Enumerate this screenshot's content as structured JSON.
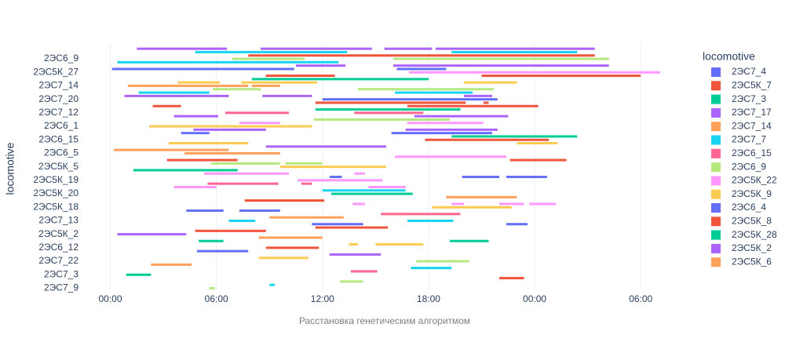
{
  "chart_data": {
    "type": "timeline",
    "y_title": "locomotive",
    "x_title": "Расстановка генетическим алгоритмом",
    "legend_title": "locomotive",
    "xlim": [
      -1,
      31.5
    ],
    "xticks": [
      {
        "value": 0,
        "label": "00:00"
      },
      {
        "value": 6,
        "label": "06:00"
      },
      {
        "value": 12,
        "label": "12:00"
      },
      {
        "value": 18,
        "label": "18:00"
      },
      {
        "value": 24,
        "label": "00:00"
      },
      {
        "value": 30,
        "label": "06:00"
      }
    ],
    "grid": true,
    "categories": [
      null,
      null,
      null,
      "2ЭС6_9",
      null,
      null,
      null,
      "2ЭС5К_27",
      null,
      null,
      null,
      "2ЭС7_14",
      null,
      null,
      null,
      "2ЭС7_20",
      null,
      null,
      null,
      "2ЭС7_12",
      null,
      null,
      null,
      "2ЭС6_1",
      null,
      null,
      null,
      "2ЭС6_15",
      null,
      null,
      null,
      "2ЭС6_5",
      null,
      null,
      null,
      "2ЭС5К_5",
      null,
      null,
      null,
      "2ЭС5К_19",
      null,
      null,
      null,
      "2ЭС5К_20",
      null,
      null,
      null,
      "2ЭС5К_18",
      null,
      null,
      null,
      "2ЭС7_13",
      null,
      null,
      null,
      "2ЭС5К_2",
      null,
      null,
      null,
      "2ЭС6_12",
      null,
      null,
      null,
      "2ЭС7_22",
      null,
      null,
      null,
      "2ЭС7_3",
      null,
      null,
      null,
      "2ЭС7_9"
    ],
    "bars": [
      {
        "color": "#ab63fa",
        "start": [
          1.5,
          8.5,
          15.5,
          18.4
        ],
        "end": [
          6.6,
          14.8,
          18.2,
          27.4
        ]
      },
      {
        "color": "#19d3f3",
        "start": [
          4.8,
          19.3
        ],
        "end": [
          13.4,
          26.4
        ]
      },
      {
        "color": "#EF553B",
        "start": [
          7.8
        ],
        "end": [
          27.4
        ]
      },
      {
        "color": "#B6E880",
        "start": [
          6.9,
          16
        ],
        "end": [
          11,
          28.2
        ]
      },
      {
        "color": "#19d3f3",
        "start": [
          0.4
        ],
        "end": [
          12.9
        ]
      },
      {
        "color": "#ab63fa",
        "start": [
          10.5,
          16
        ],
        "end": [
          13.3,
          28.2
        ]
      },
      {
        "color": "#636efa",
        "start": [
          0.1,
          16.2
        ],
        "end": [
          10.4,
          19
        ]
      },
      {
        "color": "#FF97FF",
        "start": [
          16.9
        ],
        "end": [
          31.1
        ]
      },
      {
        "color": "#EF553B",
        "start": [
          8.8,
          21
        ],
        "end": [
          12.7,
          30
        ]
      },
      {
        "color": "#00cc96",
        "start": [
          8
        ],
        "end": [
          18
        ]
      },
      {
        "color": "#FECB52",
        "start": [
          3.8,
          7.4,
          20
        ],
        "end": [
          6.2,
          11.7,
          23
        ]
      },
      {
        "color": "#FFA15A",
        "start": [
          1,
          8
        ],
        "end": [
          7.8,
          9.6
        ]
      },
      {
        "color": "#B6E880",
        "start": [
          5.8,
          14
        ],
        "end": [
          8.5,
          21.7
        ]
      },
      {
        "color": "#19d3f3",
        "start": [
          1.6,
          16.1
        ],
        "end": [
          5.6,
          20.5
        ]
      },
      {
        "color": "#ab63fa",
        "start": [
          0.8,
          8.6,
          20
        ],
        "end": [
          6.7,
          11.4,
          21.6
        ]
      },
      {
        "color": "#636efa",
        "start": [
          12
        ],
        "end": [
          21.9
        ]
      },
      {
        "color": "#EF553B",
        "start": [
          11.6,
          21.1
        ],
        "end": [
          20.1,
          21.4
        ]
      },
      {
        "color": "#EF553B",
        "start": [
          2.4,
          16.8
        ],
        "end": [
          4,
          24.2
        ]
      },
      {
        "color": "#00cc96",
        "start": [
          11.6
        ],
        "end": [
          19.8
        ]
      },
      {
        "color": "#FF6692",
        "start": [
          6.5,
          13.8
        ],
        "end": [
          10.1,
          17.7
        ]
      },
      {
        "color": "#ab63fa",
        "start": [
          3.6,
          17.2
        ],
        "end": [
          6.1,
          22.5
        ]
      },
      {
        "color": "#B6E880",
        "start": [
          11.5
        ],
        "end": [
          19.2
        ]
      },
      {
        "color": "#FF97FF",
        "start": [
          7.3,
          16.8
        ],
        "end": [
          9.6,
          21.1
        ]
      },
      {
        "color": "#FECB52",
        "start": [
          2.2
        ],
        "end": [
          11.4
        ]
      },
      {
        "color": "#ab63fa",
        "start": [
          4.7,
          16.7
        ],
        "end": [
          8.8,
          21.9
        ]
      },
      {
        "color": "#636efa",
        "start": [
          4,
          15.9
        ],
        "end": [
          5.6,
          21.6
        ]
      },
      {
        "color": "#00cc96",
        "start": [
          19.3
        ],
        "end": [
          26.4
        ]
      },
      {
        "color": "#EF553B",
        "start": [
          17.8
        ],
        "end": [
          24.8
        ]
      },
      {
        "color": "#FECB52",
        "start": [
          3.3,
          23
        ],
        "end": [
          7.8,
          25.3
        ]
      },
      {
        "color": "#ab63fa",
        "start": [
          8.8
        ],
        "end": [
          15.6
        ]
      },
      {
        "color": "#FFA15A",
        "start": [
          0.2
        ],
        "end": [
          6.7
        ]
      },
      {
        "color": "#FFA15A",
        "start": [
          4.2
        ],
        "end": [
          9.6
        ]
      },
      {
        "color": "#FF97FF",
        "start": [
          16.1
        ],
        "end": [
          22.4
        ]
      },
      {
        "color": "#EF553B",
        "start": [
          3.2,
          22.6
        ],
        "end": [
          7.2,
          25.8
        ]
      },
      {
        "color": "#B6E880",
        "start": [
          5.7,
          9.9
        ],
        "end": [
          9.6,
          12
        ]
      },
      {
        "color": "#FECB52",
        "start": [
          9.6
        ],
        "end": [
          15.6
        ]
      },
      {
        "color": "#00cc96",
        "start": [
          1.3
        ],
        "end": [
          7.2
        ]
      },
      {
        "color": "#FF97FF",
        "start": [
          5.3,
          13.8
        ],
        "end": [
          10.1,
          14.4
        ]
      },
      {
        "color": "#636efa",
        "start": [
          12.4,
          19.9,
          22.4
        ],
        "end": [
          13.1,
          22,
          24.7
        ]
      },
      {
        "color": "#FF97FF",
        "start": [
          10.6
        ],
        "end": [
          15.4
        ]
      },
      {
        "color": "#FF6692",
        "start": [
          5.5,
          10.8
        ],
        "end": [
          9.5,
          11.4
        ]
      },
      {
        "color": "#FF97FF",
        "start": [
          3.6,
          14.6
        ],
        "end": [
          6,
          16.7
        ]
      },
      {
        "color": "#19d3f3",
        "start": [
          12
        ],
        "end": [
          16.7
        ]
      },
      {
        "color": "#00cc96",
        "start": [
          12.5
        ],
        "end": [
          17.1
        ]
      },
      {
        "color": "#FFA15A",
        "start": [
          19
        ],
        "end": [
          23
        ]
      },
      {
        "color": "#EF553B",
        "start": [
          7.6
        ],
        "end": [
          12.1
        ]
      },
      {
        "color": "#FF97FF",
        "start": [
          13.7,
          19.3,
          22,
          23.7
        ],
        "end": [
          14.4,
          20,
          23.4,
          25.2
        ]
      },
      {
        "color": "#FECB52",
        "start": [
          18.2
        ],
        "end": [
          22.7
        ]
      },
      {
        "color": "#636efa",
        "start": [
          4.3,
          7.3
        ],
        "end": [
          6.4,
          9.6
        ]
      },
      {
        "color": "#FF6692",
        "start": [
          15.3
        ],
        "end": [
          19.8
        ]
      },
      {
        "color": "#FFA15A",
        "start": [
          9
        ],
        "end": [
          13.2
        ]
      },
      {
        "color": "#19d3f3",
        "start": [
          6.7,
          16.8
        ],
        "end": [
          8.2,
          19.4
        ]
      },
      {
        "color": "#636efa",
        "start": [
          11.4,
          22.4
        ],
        "end": [
          14.3,
          23.6
        ]
      },
      {
        "color": "#EF553B",
        "start": [
          11.6
        ],
        "end": [
          15.7
        ]
      },
      {
        "color": "#EF553B",
        "start": [
          4.8
        ],
        "end": [
          8.8
        ]
      },
      {
        "color": "#ab63fa",
        "start": [
          0.4
        ],
        "end": [
          4.3
        ]
      },
      {
        "color": "#FFA15A",
        "start": [
          8.4
        ],
        "end": [
          12
        ]
      },
      {
        "color": "#00cc96",
        "start": [
          5,
          19.2
        ],
        "end": [
          6.4,
          21.4
        ]
      },
      {
        "color": "#FECB52",
        "start": [
          13.5,
          15
        ],
        "end": [
          14,
          17.7
        ]
      },
      {
        "color": "#EF553B",
        "start": [
          8.8
        ],
        "end": [
          11.8
        ]
      },
      {
        "color": "#636efa",
        "start": [
          4.9
        ],
        "end": [
          7.8
        ]
      },
      {
        "color": "#ab63fa",
        "start": [
          12.4
        ],
        "end": [
          15.3
        ]
      },
      {
        "color": "#FECB52",
        "start": [
          8.4
        ],
        "end": [
          11.2
        ]
      },
      {
        "color": "#B6E880",
        "start": [
          17.3
        ],
        "end": [
          20.3
        ]
      },
      {
        "color": "#FFA15A",
        "start": [
          2.3
        ],
        "end": [
          4.6
        ]
      },
      {
        "color": "#19d3f3",
        "start": [
          17
        ],
        "end": [
          19.3
        ]
      },
      {
        "color": "#FF6692",
        "start": [
          13.6
        ],
        "end": [
          15.1
        ]
      },
      {
        "color": "#00cc96",
        "start": [
          0.9
        ],
        "end": [
          2.3
        ]
      },
      {
        "color": "#EF553B",
        "start": [
          22
        ],
        "end": [
          23.4
        ]
      },
      {
        "color": "#B6E880",
        "start": [
          13
        ],
        "end": [
          14.3
        ]
      },
      {
        "color": "#19d3f3",
        "start": [
          9
        ],
        "end": [
          9.3
        ]
      },
      {
        "color": "#B6E880",
        "start": [
          5.6
        ],
        "end": [
          5.9
        ]
      }
    ],
    "legend": [
      {
        "name": "2ЭС7_4",
        "color": "#636efa"
      },
      {
        "name": "2ЭС5К_7",
        "color": "#EF553B"
      },
      {
        "name": "2ЭС7_3",
        "color": "#00cc96"
      },
      {
        "name": "2ЭС7_17",
        "color": "#ab63fa"
      },
      {
        "name": "2ЭС7_14",
        "color": "#FFA15A"
      },
      {
        "name": "2ЭС7_7",
        "color": "#19d3f3"
      },
      {
        "name": "2ЭС6_15",
        "color": "#FF6692"
      },
      {
        "name": "2ЭС6_9",
        "color": "#B6E880"
      },
      {
        "name": "2ЭС5К_22",
        "color": "#FF97FF"
      },
      {
        "name": "2ЭС5К_9",
        "color": "#FECB52"
      },
      {
        "name": "2ЭС6_4",
        "color": "#636efa"
      },
      {
        "name": "2ЭС5К_8",
        "color": "#EF553B"
      },
      {
        "name": "2ЭС5К_28",
        "color": "#00cc96"
      },
      {
        "name": "2ЭС5К_2",
        "color": "#ab63fa"
      },
      {
        "name": "2ЭС5К_6",
        "color": "#FFA15A"
      }
    ]
  }
}
